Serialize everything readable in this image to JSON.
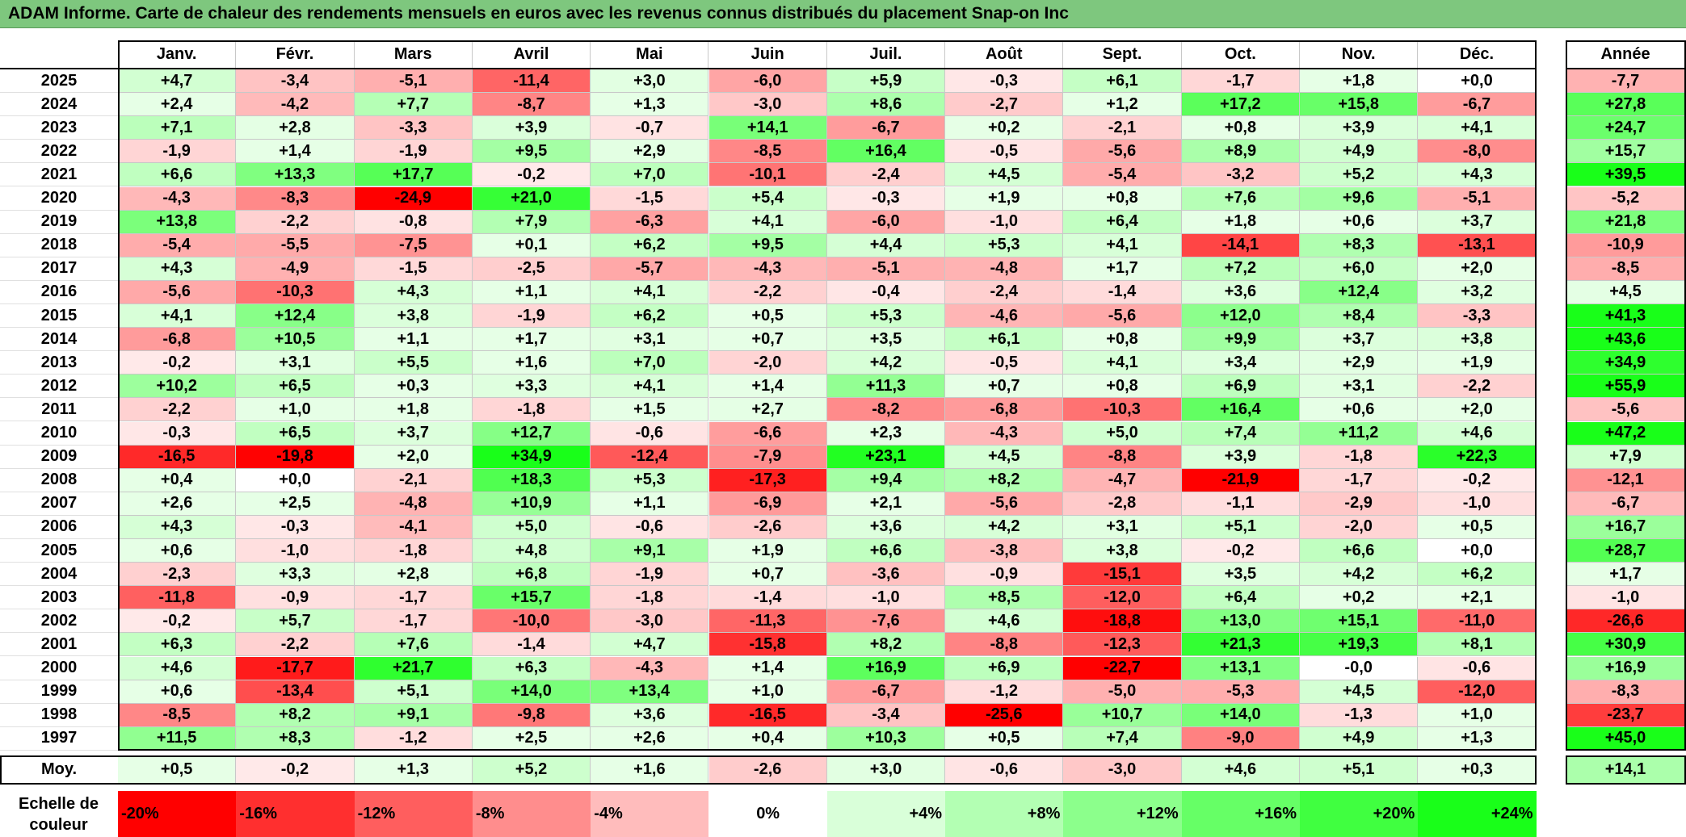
{
  "title": "ADAM Informe. Carte de chaleur des rendements mensuels en euros avec les revenus connus distribués du placement Snap-on Inc",
  "chart_data": {
    "type": "heatmap",
    "title": "ADAM Informe. Carte de chaleur des rendements mensuels en euros avec les revenus connus distribués du placement Snap-on Inc",
    "months": [
      "Janv.",
      "Févr.",
      "Mars",
      "Avril",
      "Mai",
      "Juin",
      "Juil.",
      "Août",
      "Sept.",
      "Oct.",
      "Nov.",
      "Déc."
    ],
    "year_header": "Année",
    "rows": [
      {
        "year": "2025",
        "values": [
          "+4,7",
          "-3,4",
          "-5,1",
          "-11,4",
          "+3,0",
          "-6,0",
          "+5,9",
          "-0,3",
          "+6,1",
          "-1,7",
          "+1,8",
          "+0,0"
        ],
        "annual": "-7,7"
      },
      {
        "year": "2024",
        "values": [
          "+2,4",
          "-4,2",
          "+7,7",
          "-8,7",
          "+1,3",
          "-3,0",
          "+8,6",
          "-2,7",
          "+1,2",
          "+17,2",
          "+15,8",
          "-6,7"
        ],
        "annual": "+27,8"
      },
      {
        "year": "2023",
        "values": [
          "+7,1",
          "+2,8",
          "-3,3",
          "+3,9",
          "-0,7",
          "+14,1",
          "-6,7",
          "+0,2",
          "-2,1",
          "+0,8",
          "+3,9",
          "+4,1"
        ],
        "annual": "+24,7"
      },
      {
        "year": "2022",
        "values": [
          "-1,9",
          "+1,4",
          "-1,9",
          "+9,5",
          "+2,9",
          "-8,5",
          "+16,4",
          "-0,5",
          "-5,6",
          "+8,9",
          "+4,9",
          "-8,0"
        ],
        "annual": "+15,7"
      },
      {
        "year": "2021",
        "values": [
          "+6,6",
          "+13,3",
          "+17,7",
          "-0,2",
          "+7,0",
          "-10,1",
          "-2,4",
          "+4,5",
          "-5,4",
          "-3,2",
          "+5,2",
          "+4,3"
        ],
        "annual": "+39,5"
      },
      {
        "year": "2020",
        "values": [
          "-4,3",
          "-8,3",
          "-24,9",
          "+21,0",
          "-1,5",
          "+5,4",
          "-0,3",
          "+1,9",
          "+0,8",
          "+7,6",
          "+9,6",
          "-5,1"
        ],
        "annual": "-5,2"
      },
      {
        "year": "2019",
        "values": [
          "+13,8",
          "-2,2",
          "-0,8",
          "+7,9",
          "-6,3",
          "+4,1",
          "-6,0",
          "-1,0",
          "+6,4",
          "+1,8",
          "+0,6",
          "+3,7"
        ],
        "annual": "+21,8"
      },
      {
        "year": "2018",
        "values": [
          "-5,4",
          "-5,5",
          "-7,5",
          "+0,1",
          "+6,2",
          "+9,5",
          "+4,4",
          "+5,3",
          "+4,1",
          "-14,1",
          "+8,3",
          "-13,1"
        ],
        "annual": "-10,9"
      },
      {
        "year": "2017",
        "values": [
          "+4,3",
          "-4,9",
          "-1,5",
          "-2,5",
          "-5,7",
          "-4,3",
          "-5,1",
          "-4,8",
          "+1,7",
          "+7,2",
          "+6,0",
          "+2,0"
        ],
        "annual": "-8,5"
      },
      {
        "year": "2016",
        "values": [
          "-5,6",
          "-10,3",
          "+4,3",
          "+1,1",
          "+4,1",
          "-2,2",
          "-0,4",
          "-2,4",
          "-1,4",
          "+3,6",
          "+12,4",
          "+3,2"
        ],
        "annual": "+4,5"
      },
      {
        "year": "2015",
        "values": [
          "+4,1",
          "+12,4",
          "+3,8",
          "-1,9",
          "+6,2",
          "+0,5",
          "+5,3",
          "-4,6",
          "-5,6",
          "+12,0",
          "+8,4",
          "-3,3"
        ],
        "annual": "+41,3"
      },
      {
        "year": "2014",
        "values": [
          "-6,8",
          "+10,5",
          "+1,1",
          "+1,7",
          "+3,1",
          "+0,7",
          "+3,5",
          "+6,1",
          "+0,8",
          "+9,9",
          "+3,7",
          "+3,8"
        ],
        "annual": "+43,6"
      },
      {
        "year": "2013",
        "values": [
          "-0,2",
          "+3,1",
          "+5,5",
          "+1,6",
          "+7,0",
          "-2,0",
          "+4,2",
          "-0,5",
          "+4,1",
          "+3,4",
          "+2,9",
          "+1,9"
        ],
        "annual": "+34,9"
      },
      {
        "year": "2012",
        "values": [
          "+10,2",
          "+6,5",
          "+0,3",
          "+3,3",
          "+4,1",
          "+1,4",
          "+11,3",
          "+0,7",
          "+0,8",
          "+6,9",
          "+3,1",
          "-2,2"
        ],
        "annual": "+55,9"
      },
      {
        "year": "2011",
        "values": [
          "-2,2",
          "+1,0",
          "+1,8",
          "-1,8",
          "+1,5",
          "+2,7",
          "-8,2",
          "-6,8",
          "-10,3",
          "+16,4",
          "+0,6",
          "+2,0"
        ],
        "annual": "-5,6"
      },
      {
        "year": "2010",
        "values": [
          "-0,3",
          "+6,5",
          "+3,7",
          "+12,7",
          "-0,6",
          "-6,6",
          "+2,3",
          "-4,3",
          "+5,0",
          "+7,4",
          "+11,2",
          "+4,6"
        ],
        "annual": "+47,2"
      },
      {
        "year": "2009",
        "values": [
          "-16,5",
          "-19,8",
          "+2,0",
          "+34,9",
          "-12,4",
          "-7,9",
          "+23,1",
          "+4,5",
          "-8,8",
          "+3,9",
          "-1,8",
          "+22,3"
        ],
        "annual": "+7,9"
      },
      {
        "year": "2008",
        "values": [
          "+0,4",
          "+0,0",
          "-2,1",
          "+18,3",
          "+5,3",
          "-17,3",
          "+9,4",
          "+8,2",
          "-4,7",
          "-21,9",
          "-1,7",
          "-0,2"
        ],
        "annual": "-12,1"
      },
      {
        "year": "2007",
        "values": [
          "+2,6",
          "+2,5",
          "-4,8",
          "+10,9",
          "+1,1",
          "-6,9",
          "+2,1",
          "-5,6",
          "-2,8",
          "-1,1",
          "-2,9",
          "-1,0"
        ],
        "annual": "-6,7"
      },
      {
        "year": "2006",
        "values": [
          "+4,3",
          "-0,3",
          "-4,1",
          "+5,0",
          "-0,6",
          "-2,6",
          "+3,6",
          "+4,2",
          "+3,1",
          "+5,1",
          "-2,0",
          "+0,5"
        ],
        "annual": "+16,7"
      },
      {
        "year": "2005",
        "values": [
          "+0,6",
          "-1,0",
          "-1,8",
          "+4,8",
          "+9,1",
          "+1,9",
          "+6,6",
          "-3,8",
          "+3,8",
          "-0,2",
          "+6,6",
          "+0,0"
        ],
        "annual": "+28,7"
      },
      {
        "year": "2004",
        "values": [
          "-2,3",
          "+3,3",
          "+2,8",
          "+6,8",
          "-1,9",
          "+0,7",
          "-3,6",
          "-0,9",
          "-15,1",
          "+3,5",
          "+4,2",
          "+6,2"
        ],
        "annual": "+1,7"
      },
      {
        "year": "2003",
        "values": [
          "-11,8",
          "-0,9",
          "-1,7",
          "+15,7",
          "-1,8",
          "-1,4",
          "-1,0",
          "+8,5",
          "-12,0",
          "+6,4",
          "+0,2",
          "+2,1"
        ],
        "annual": "-1,0"
      },
      {
        "year": "2002",
        "values": [
          "-0,2",
          "+5,7",
          "-1,7",
          "-10,0",
          "-3,0",
          "-11,3",
          "-7,6",
          "+4,6",
          "-18,8",
          "+13,0",
          "+15,1",
          "-11,0"
        ],
        "annual": "-26,6"
      },
      {
        "year": "2001",
        "values": [
          "+6,3",
          "-2,2",
          "+7,6",
          "-1,4",
          "+4,7",
          "-15,8",
          "+8,2",
          "-8,8",
          "-12,3",
          "+21,3",
          "+19,3",
          "+8,1"
        ],
        "annual": "+30,9"
      },
      {
        "year": "2000",
        "values": [
          "+4,6",
          "-17,7",
          "+21,7",
          "+6,3",
          "-4,3",
          "+1,4",
          "+16,9",
          "+6,9",
          "-22,7",
          "+13,1",
          "-0,0",
          "-0,6"
        ],
        "annual": "+16,9"
      },
      {
        "year": "1999",
        "values": [
          "+0,6",
          "-13,4",
          "+5,1",
          "+14,0",
          "+13,4",
          "+1,0",
          "-6,7",
          "-1,2",
          "-5,0",
          "-5,3",
          "+4,5",
          "-12,0"
        ],
        "annual": "-8,3"
      },
      {
        "year": "1998",
        "values": [
          "-8,5",
          "+8,2",
          "+9,1",
          "-9,8",
          "+3,6",
          "-16,5",
          "-3,4",
          "-25,6",
          "+10,7",
          "+14,0",
          "-1,3",
          "+1,0"
        ],
        "annual": "-23,7"
      },
      {
        "year": "1997",
        "values": [
          "+11,5",
          "+8,3",
          "-1,2",
          "+2,5",
          "+2,6",
          "+0,4",
          "+10,3",
          "+0,5",
          "+7,4",
          "-9,0",
          "+4,9",
          "+1,3"
        ],
        "annual": "+45,0"
      }
    ],
    "average": {
      "label": "Moy.",
      "values": [
        "+0,5",
        "-0,2",
        "+1,3",
        "+5,2",
        "+1,6",
        "-2,6",
        "+3,0",
        "-0,6",
        "-3,0",
        "+4,6",
        "+5,1",
        "+0,3"
      ],
      "annual": "+14,1"
    },
    "color_scale": {
      "label": "Echelle de couleur",
      "stops": [
        "-20%",
        "-16%",
        "-12%",
        "-8%",
        "-4%",
        "0%",
        "+4%",
        "+8%",
        "+12%",
        "+16%",
        "+20%",
        "+24%"
      ],
      "stop_values": [
        -20,
        -16,
        -12,
        -8,
        -4,
        0,
        4,
        8,
        12,
        16,
        20,
        24
      ],
      "negative_color": "#ff0000",
      "positive_color": "#00ff00",
      "neutral_color": "#ffffff"
    }
  }
}
